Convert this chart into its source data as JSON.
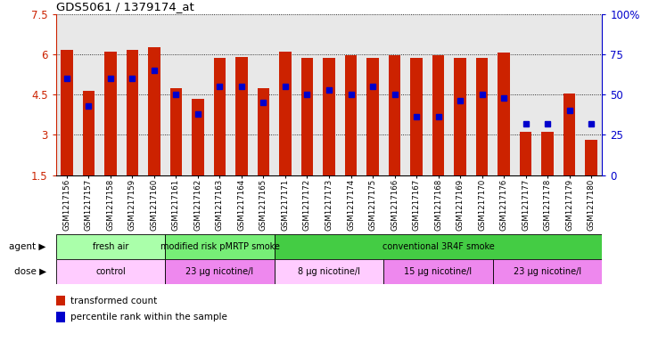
{
  "title": "GDS5061 / 1379174_at",
  "samples": [
    "GSM1217156",
    "GSM1217157",
    "GSM1217158",
    "GSM1217159",
    "GSM1217160",
    "GSM1217161",
    "GSM1217162",
    "GSM1217163",
    "GSM1217164",
    "GSM1217165",
    "GSM1217171",
    "GSM1217172",
    "GSM1217173",
    "GSM1217174",
    "GSM1217175",
    "GSM1217166",
    "GSM1217167",
    "GSM1217168",
    "GSM1217169",
    "GSM1217170",
    "GSM1217176",
    "GSM1217177",
    "GSM1217178",
    "GSM1217179",
    "GSM1217180"
  ],
  "transformed_count": [
    6.15,
    4.65,
    6.1,
    6.15,
    6.25,
    4.72,
    4.35,
    5.85,
    5.9,
    4.75,
    6.1,
    5.85,
    5.85,
    5.95,
    5.85,
    5.95,
    5.85,
    5.95,
    5.85,
    5.85,
    6.05,
    3.1,
    3.1,
    4.55,
    2.8
  ],
  "percentile_rank": [
    60,
    43,
    60,
    60,
    65,
    50,
    38,
    55,
    55,
    45,
    55,
    50,
    53,
    50,
    55,
    50,
    36,
    36,
    46,
    50,
    48,
    32,
    32,
    40,
    32
  ],
  "ymin": 1.5,
  "ymax": 7.5,
  "yticks": [
    1.5,
    3.0,
    4.5,
    6.0,
    7.5
  ],
  "right_yticks": [
    0,
    25,
    50,
    75,
    100
  ],
  "bar_color": "#cc2200",
  "dot_color": "#0000cc",
  "agent_groups": [
    {
      "label": "fresh air",
      "start": 0,
      "end": 5,
      "color": "#aaffaa"
    },
    {
      "label": "modified risk pMRTP smoke",
      "start": 5,
      "end": 10,
      "color": "#77ee77"
    },
    {
      "label": "conventional 3R4F smoke",
      "start": 10,
      "end": 25,
      "color": "#44cc44"
    }
  ],
  "dose_groups": [
    {
      "label": "control",
      "start": 0,
      "end": 5,
      "color": "#ffccff"
    },
    {
      "label": "23 μg nicotine/l",
      "start": 5,
      "end": 10,
      "color": "#ee88ee"
    },
    {
      "label": "8 μg nicotine/l",
      "start": 10,
      "end": 15,
      "color": "#ffccff"
    },
    {
      "label": "15 μg nicotine/l",
      "start": 15,
      "end": 20,
      "color": "#ee88ee"
    },
    {
      "label": "23 μg nicotine/l",
      "start": 20,
      "end": 25,
      "color": "#ee88ee"
    }
  ],
  "agent_label": "agent",
  "dose_label": "dose",
  "legend_transformed": "transformed count",
  "legend_percentile": "percentile rank within the sample",
  "bg_color": "#e8e8e8"
}
